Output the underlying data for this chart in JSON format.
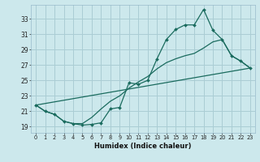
{
  "background_color": "#cce8ec",
  "grid_color": "#aacdd4",
  "line_color": "#1a6b5e",
  "xlabel": "Humidex (Indice chaleur)",
  "xlim": [
    -0.5,
    23.5
  ],
  "ylim": [
    18.2,
    34.8
  ],
  "yticks": [
    19,
    21,
    23,
    25,
    27,
    29,
    31,
    33
  ],
  "xticks": [
    0,
    1,
    2,
    3,
    4,
    5,
    6,
    7,
    8,
    9,
    10,
    11,
    12,
    13,
    14,
    15,
    16,
    17,
    18,
    19,
    20,
    21,
    22,
    23
  ],
  "curve1_x": [
    0,
    1,
    2,
    3,
    4,
    5,
    6,
    7,
    8,
    9,
    10,
    11,
    12,
    13,
    14,
    15,
    16,
    17,
    18,
    19,
    20,
    21,
    22,
    23
  ],
  "curve1_y": [
    21.8,
    21.0,
    20.6,
    19.7,
    19.4,
    19.2,
    19.3,
    19.5,
    21.3,
    21.5,
    24.7,
    24.5,
    25.0,
    27.8,
    30.3,
    31.6,
    32.2,
    32.2,
    34.2,
    31.5,
    30.3,
    28.2,
    27.5,
    26.6
  ],
  "curve2_x": [
    0,
    1,
    2,
    3,
    4,
    5,
    6,
    7,
    8,
    9,
    10,
    11,
    12,
    13,
    14,
    15,
    16,
    17,
    18,
    19,
    20,
    21,
    22,
    23
  ],
  "curve2_y": [
    21.8,
    21.0,
    20.6,
    19.7,
    19.4,
    19.4,
    20.2,
    21.3,
    22.3,
    23.0,
    24.0,
    24.8,
    25.5,
    26.5,
    27.3,
    27.8,
    28.2,
    28.5,
    29.2,
    30.0,
    30.3,
    28.2,
    27.5,
    26.6
  ],
  "curve3_x": [
    0,
    23
  ],
  "curve3_y": [
    21.8,
    26.6
  ]
}
